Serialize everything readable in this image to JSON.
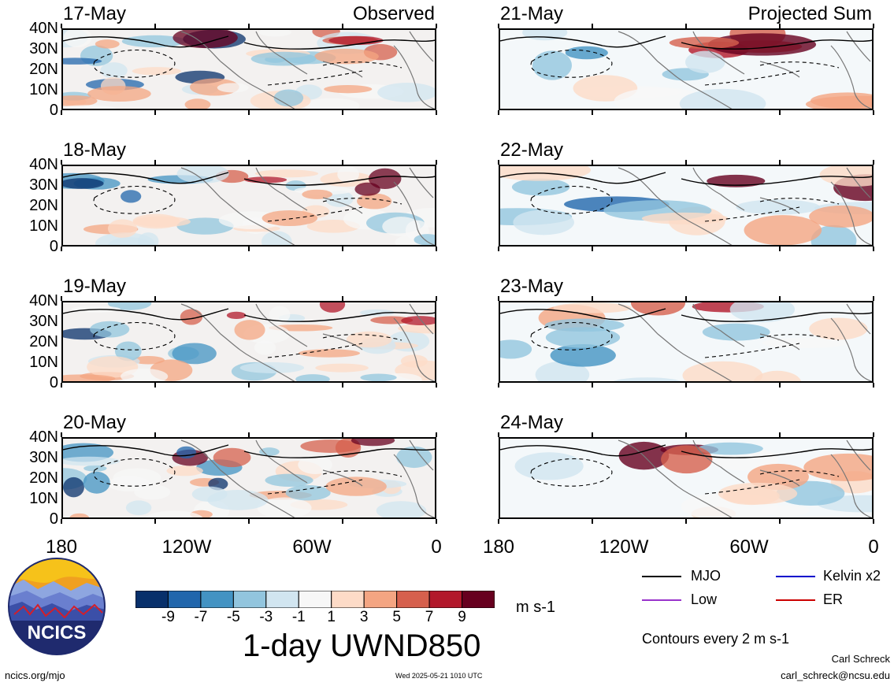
{
  "panels": [
    {
      "date": "17-May",
      "tag": "Observed"
    },
    {
      "date": "18-May",
      "tag": ""
    },
    {
      "date": "19-May",
      "tag": ""
    },
    {
      "date": "20-May",
      "tag": ""
    },
    {
      "date": "21-May",
      "tag": "Projected Sum"
    },
    {
      "date": "22-May",
      "tag": ""
    },
    {
      "date": "23-May",
      "tag": ""
    },
    {
      "date": "24-May",
      "tag": ""
    }
  ],
  "lat_labels": [
    "40N",
    "30N",
    "20N",
    "10N",
    "0"
  ],
  "lon_labels": [
    "180",
    "120W",
    "60W",
    "0"
  ],
  "colorbar": {
    "ticks": [
      "-9",
      "-7",
      "-5",
      "-3",
      "-1",
      "1",
      "3",
      "5",
      "7",
      "9"
    ],
    "colors": [
      "#08306b",
      "#2166ac",
      "#4393c3",
      "#92c5de",
      "#d1e5f0",
      "#f7f7f7",
      "#fddbc7",
      "#f4a582",
      "#d6604d",
      "#b2182b",
      "#67001f"
    ],
    "units": "m s-1",
    "title": "1-day UWND850"
  },
  "legend": {
    "items": [
      {
        "label": "MJO",
        "color": "#000000"
      },
      {
        "label": "Kelvin x2",
        "color": "#0000cc"
      },
      {
        "label": "Low",
        "color": "#9933cc"
      },
      {
        "label": "ER",
        "color": "#cc0000"
      }
    ],
    "contours": "Contours every 2 m s-1"
  },
  "logo": "NCICS",
  "footer": {
    "url": "ncics.org/mjo",
    "timestamp": "Wed 2025-05-21 1010 UTC",
    "author": "Carl Schreck",
    "email": "carl_schreck@ncsu.edu"
  }
}
